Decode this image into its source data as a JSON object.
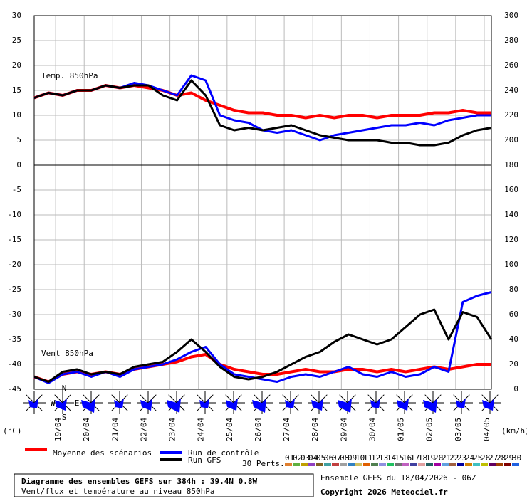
{
  "chart_data": [
    {
      "type": "line",
      "panel_label": "Temp. 850hPa",
      "xlim": [
        0,
        384
      ],
      "x": [
        0,
        12,
        24,
        36,
        48,
        60,
        72,
        84,
        96,
        108,
        120,
        132,
        144,
        156,
        168,
        180,
        192,
        204,
        216,
        228,
        240,
        252,
        264,
        276,
        288,
        300,
        312,
        324,
        336,
        348,
        360,
        372,
        384
      ],
      "ylim": [
        0,
        30
      ],
      "yticks": [
        0,
        5,
        10,
        15,
        20,
        25,
        30
      ],
      "y2lim": [
        180,
        300
      ],
      "y2ticks": [
        180,
        200,
        220,
        240,
        260,
        280,
        300
      ],
      "grid": true,
      "series": [
        {
          "name": "Moyenne des scénarios",
          "color": "#ff0000",
          "values": [
            13.5,
            14.5,
            14,
            15,
            15,
            16,
            15.5,
            16,
            15.5,
            15,
            14,
            14.5,
            13,
            12,
            11,
            10.5,
            10.5,
            10,
            10,
            9.5,
            10,
            9.5,
            10,
            10,
            9.5,
            10,
            10,
            10,
            10.5,
            10.5,
            11,
            10.5,
            10.5
          ]
        },
        {
          "name": "Run de contrôle",
          "color": "#0000ff",
          "values": [
            13.5,
            14.5,
            14,
            15,
            15,
            16,
            15.5,
            16.5,
            16,
            15,
            14,
            18,
            17,
            10,
            9,
            8.5,
            7,
            6.5,
            7,
            6,
            5,
            6,
            6.5,
            7,
            7.5,
            8,
            8,
            8.5,
            8,
            9,
            9.5,
            10,
            10
          ]
        },
        {
          "name": "Run GFS",
          "color": "#000000",
          "values": [
            13.5,
            14.5,
            14,
            15,
            15,
            16,
            15.5,
            16,
            16,
            14,
            13,
            17,
            14,
            8,
            7,
            7.5,
            7,
            7.5,
            8,
            7,
            6,
            5.5,
            5,
            5,
            5,
            4.5,
            4.5,
            4,
            4,
            4.5,
            6,
            7,
            7.5
          ]
        }
      ]
    },
    {
      "type": "line",
      "panel_label": "Vent 850hPa",
      "xlim": [
        0,
        384
      ],
      "x": [
        0,
        12,
        24,
        36,
        48,
        60,
        72,
        84,
        96,
        108,
        120,
        132,
        144,
        156,
        168,
        180,
        192,
        204,
        216,
        228,
        240,
        252,
        264,
        276,
        288,
        300,
        312,
        324,
        336,
        348,
        360,
        372,
        384
      ],
      "ylim": [
        -45,
        0
      ],
      "yticks": [
        -45,
        -40,
        -35,
        -30,
        -25,
        -20,
        -15,
        -10,
        -5
      ],
      "y2lim": [
        0,
        180
      ],
      "y2ticks": [
        0,
        20,
        40,
        60,
        80,
        100,
        120,
        140,
        160
      ],
      "grid": true,
      "series": [
        {
          "color": "#ff0000",
          "axis": "y2",
          "values": [
            10,
            6,
            12,
            14,
            12,
            14,
            12,
            16,
            18,
            20,
            22,
            26,
            28,
            20,
            16,
            14,
            12,
            12,
            14,
            16,
            14,
            14,
            16,
            16,
            14,
            16,
            14,
            16,
            18,
            16,
            18,
            20,
            20
          ]
        },
        {
          "color": "#0000ff",
          "axis": "y2",
          "values": [
            10,
            5,
            12,
            14,
            10,
            14,
            10,
            16,
            18,
            20,
            24,
            30,
            34,
            20,
            12,
            10,
            8,
            6,
            10,
            12,
            10,
            14,
            18,
            12,
            10,
            14,
            10,
            12,
            18,
            14,
            70,
            75,
            78
          ]
        },
        {
          "color": "#000000",
          "axis": "y2",
          "values": [
            10,
            6,
            14,
            16,
            12,
            14,
            12,
            18,
            20,
            22,
            30,
            40,
            30,
            18,
            10,
            8,
            10,
            14,
            20,
            26,
            30,
            38,
            44,
            40,
            36,
            40,
            50,
            60,
            64,
            40,
            62,
            58,
            40
          ]
        }
      ]
    }
  ],
  "date_labels": [
    "19/04",
    "20/04",
    "21/04",
    "22/04",
    "23/04",
    "24/04",
    "25/04",
    "26/04",
    "27/04",
    "28/04",
    "29/04",
    "30/04",
    "01/05",
    "02/05",
    "03/05",
    "04/05"
  ],
  "date_hours": [
    18,
    42,
    66,
    90,
    114,
    138,
    162,
    186,
    210,
    234,
    258,
    282,
    306,
    330,
    354,
    378
  ],
  "unit_left": "(°C)",
  "unit_right": "(km/h)",
  "compass": [
    "N",
    "W",
    "E",
    "S"
  ],
  "perts_label": "30 Perts.",
  "perts": [
    "01",
    "02",
    "03",
    "04",
    "05",
    "06",
    "07",
    "08",
    "09",
    "10",
    "11",
    "12",
    "13",
    "14",
    "15",
    "16",
    "17",
    "18",
    "19",
    "20",
    "21",
    "22",
    "23",
    "24",
    "25",
    "26",
    "27",
    "28",
    "29",
    "30"
  ],
  "pert_colors": [
    "#e08030",
    "#60b040",
    "#c0a000",
    "#9040c0",
    "#806020",
    "#40a0a0",
    "#c04040",
    "#a0a0a0",
    "#3080c0",
    "#d0c060",
    "#e06000",
    "#508050",
    "#9090e0",
    "#20c060",
    "#707070",
    "#c060c0",
    "#4040a0",
    "#e0a0a0",
    "#206060",
    "#a000a0",
    "#60a0e0",
    "#a06040",
    "#0000a0",
    "#d08000",
    "#40c0c0",
    "#c0c000",
    "#600060",
    "#a04000",
    "#800000",
    "#2060e0"
  ],
  "footer": {
    "title": "Diagramme des ensembles GEFS sur 384h : 39.4N 0.8W",
    "subtitle": "Vent/flux et température au niveau 850hPa",
    "run": "Ensemble GEFS du 18/04/2026 - 06Z",
    "copyright": "Copyright 2026 Meteociel.fr"
  }
}
